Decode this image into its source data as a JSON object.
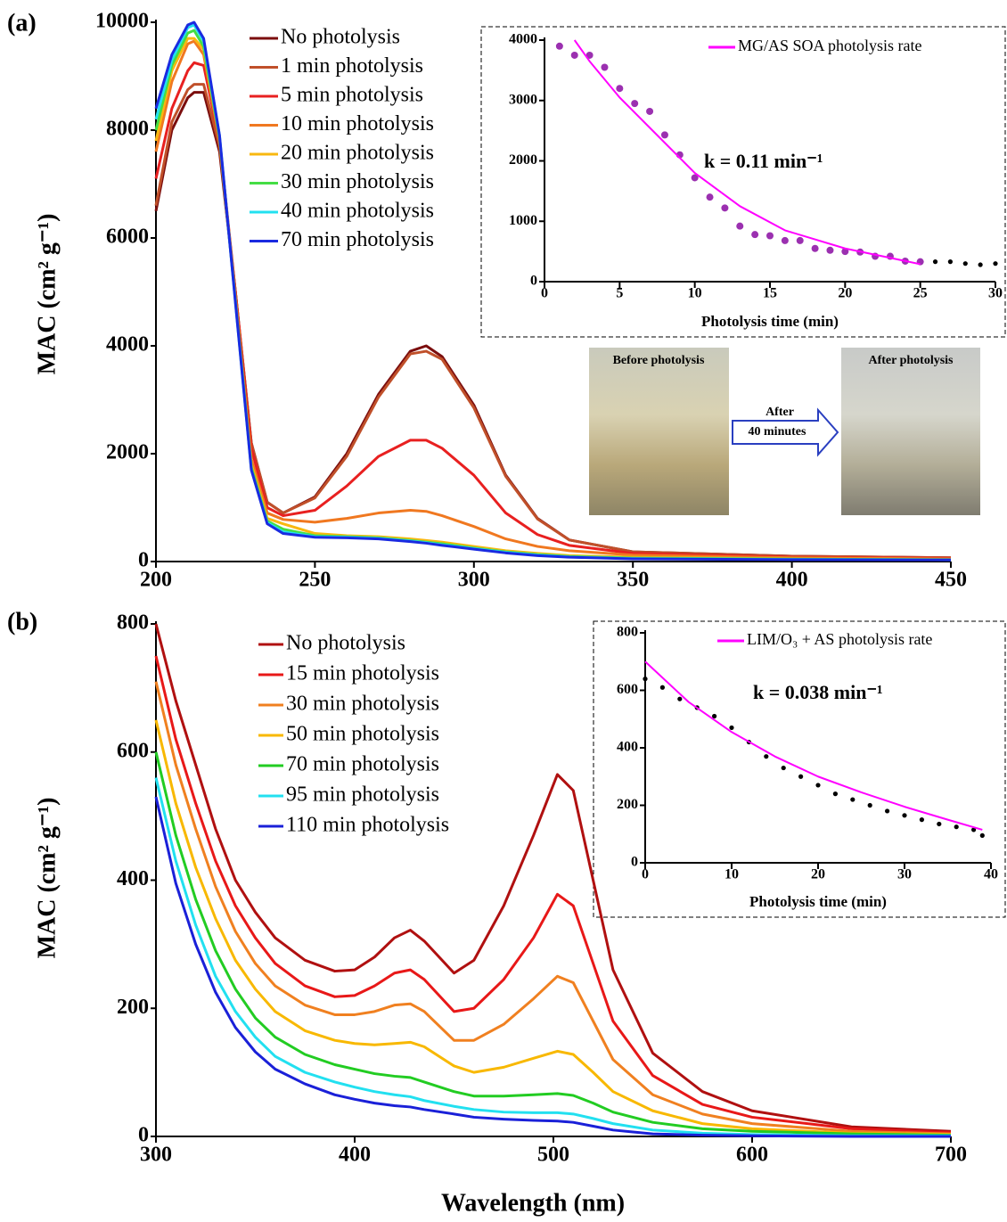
{
  "chart_data": [
    {
      "type": "line",
      "panel_label": "(a)",
      "ylabel": "MAC (cm² g⁻¹)",
      "xlim": [
        200,
        450
      ],
      "ylim": [
        0,
        10000
      ],
      "xticks": [
        200,
        250,
        300,
        350,
        400,
        450
      ],
      "yticks": [
        0,
        2000,
        4000,
        6000,
        8000,
        10000
      ],
      "annotations": [
        "Before photolysis",
        "After photolysis",
        "After",
        "40 minutes"
      ],
      "x": [
        200,
        205,
        210,
        212,
        215,
        220,
        225,
        230,
        235,
        240,
        250,
        260,
        270,
        280,
        285,
        290,
        300,
        310,
        320,
        330,
        350,
        400,
        450
      ],
      "series": [
        {
          "name": "No photolysis",
          "color": "#7b0e0e",
          "values": [
            6500,
            8000,
            8600,
            8700,
            8700,
            7600,
            5000,
            2200,
            1100,
            900,
            1200,
            2000,
            3100,
            3900,
            4000,
            3800,
            2900,
            1600,
            800,
            400,
            180,
            100,
            70
          ]
        },
        {
          "name": "1 min photolysis",
          "color": "#c0502a",
          "values": [
            6600,
            8150,
            8750,
            8850,
            8850,
            7700,
            5000,
            2200,
            1100,
            900,
            1180,
            1950,
            3050,
            3850,
            3900,
            3750,
            2850,
            1580,
            790,
            400,
            180,
            100,
            70
          ]
        },
        {
          "name": "5 min photolysis",
          "color": "#e82020",
          "values": [
            7100,
            8400,
            9100,
            9250,
            9200,
            7800,
            5000,
            2100,
            1000,
            850,
            950,
            1400,
            1950,
            2250,
            2250,
            2100,
            1600,
            900,
            500,
            300,
            150,
            80,
            60
          ]
        },
        {
          "name": "10 min photolysis",
          "color": "#f07820",
          "values": [
            7600,
            8900,
            9600,
            9650,
            9400,
            7800,
            4900,
            1900,
            900,
            780,
            730,
            800,
            900,
            950,
            930,
            850,
            650,
            420,
            280,
            200,
            120,
            70,
            50
          ]
        },
        {
          "name": "20 min photolysis",
          "color": "#f8b810",
          "values": [
            7800,
            9100,
            9700,
            9700,
            9500,
            7850,
            4850,
            1800,
            800,
            700,
            520,
            480,
            460,
            420,
            390,
            360,
            280,
            200,
            150,
            110,
            80,
            50,
            40
          ]
        },
        {
          "name": "30 min photolysis",
          "color": "#44dd44",
          "values": [
            8000,
            9200,
            9800,
            9850,
            9550,
            7850,
            4850,
            1750,
            750,
            600,
            480,
            460,
            440,
            390,
            360,
            330,
            250,
            180,
            130,
            95,
            65,
            45,
            35
          ]
        },
        {
          "name": "40 min photolysis",
          "color": "#22e0f0",
          "values": [
            8200,
            9300,
            9900,
            9950,
            9650,
            7900,
            4800,
            1700,
            720,
            550,
            460,
            450,
            430,
            380,
            350,
            310,
            240,
            170,
            120,
            85,
            55,
            40,
            32
          ]
        },
        {
          "name": "70 min photolysis",
          "color": "#1a2ae0",
          "values": [
            8400,
            9400,
            9950,
            10000,
            9700,
            7900,
            4800,
            1700,
            700,
            520,
            450,
            440,
            420,
            370,
            340,
            300,
            230,
            160,
            110,
            80,
            50,
            35,
            30
          ]
        }
      ]
    },
    {
      "type": "line",
      "panel_label": "(b)",
      "ylabel": "MAC (cm² g⁻¹)",
      "xlabel": "Wavelength (nm)",
      "xlim": [
        300,
        700
      ],
      "ylim": [
        0,
        800
      ],
      "xticks": [
        300,
        400,
        500,
        600,
        700
      ],
      "yticks": [
        0,
        200,
        400,
        600,
        800
      ],
      "x": [
        300,
        310,
        320,
        330,
        340,
        350,
        360,
        375,
        390,
        400,
        410,
        420,
        428,
        435,
        450,
        460,
        475,
        490,
        502,
        510,
        520,
        530,
        550,
        575,
        600,
        650,
        700
      ],
      "series": [
        {
          "name": "No photolysis",
          "color": "#b01010",
          "values": [
            800,
            680,
            580,
            480,
            400,
            350,
            310,
            275,
            258,
            260,
            280,
            310,
            322,
            305,
            255,
            275,
            360,
            470,
            565,
            540,
            400,
            260,
            130,
            70,
            40,
            15,
            8
          ]
        },
        {
          "name": "15 min photolysis",
          "color": "#e81818",
          "values": [
            750,
            620,
            520,
            430,
            360,
            310,
            270,
            235,
            218,
            220,
            235,
            255,
            260,
            245,
            195,
            200,
            245,
            310,
            378,
            360,
            270,
            180,
            95,
            50,
            30,
            12,
            6
          ]
        },
        {
          "name": "30 min photolysis",
          "color": "#f08020",
          "values": [
            710,
            580,
            480,
            390,
            320,
            270,
            235,
            205,
            190,
            190,
            195,
            205,
            207,
            195,
            150,
            150,
            175,
            215,
            250,
            240,
            180,
            120,
            65,
            35,
            20,
            8,
            4
          ]
        },
        {
          "name": "50 min photolysis",
          "color": "#f8b800",
          "values": [
            650,
            520,
            420,
            340,
            275,
            230,
            195,
            165,
            150,
            145,
            143,
            145,
            147,
            140,
            110,
            100,
            108,
            122,
            133,
            128,
            100,
            70,
            40,
            20,
            12,
            5,
            3
          ]
        },
        {
          "name": "70 min photolysis",
          "color": "#22cc22",
          "values": [
            600,
            470,
            370,
            290,
            230,
            185,
            155,
            128,
            112,
            105,
            98,
            94,
            92,
            85,
            70,
            63,
            63,
            65,
            67,
            64,
            52,
            38,
            22,
            12,
            8,
            4,
            2
          ]
        },
        {
          "name": "95 min photolysis",
          "color": "#22e0f0",
          "values": [
            560,
            430,
            330,
            250,
            195,
            155,
            125,
            100,
            85,
            77,
            70,
            65,
            62,
            56,
            47,
            42,
            38,
            37,
            37,
            35,
            28,
            20,
            10,
            5,
            3,
            1,
            1
          ]
        },
        {
          "name": "110 min photolysis",
          "color": "#1a20d8",
          "values": [
            530,
            395,
            300,
            225,
            170,
            132,
            105,
            82,
            65,
            58,
            52,
            48,
            46,
            42,
            35,
            30,
            27,
            25,
            24,
            22,
            16,
            10,
            4,
            2,
            1,
            0,
            0
          ]
        }
      ]
    },
    {
      "type": "scatter",
      "xlabel": "Photolysis time (min)",
      "annotation": "k = 0.11 min⁻¹",
      "xlim": [
        0,
        30
      ],
      "ylim": [
        0,
        4000
      ],
      "xticks": [
        0,
        5,
        10,
        15,
        20,
        25,
        30
      ],
      "yticks": [
        0,
        1000,
        2000,
        3000,
        4000
      ],
      "series": [
        {
          "style": "marker",
          "color": "#9b30b0",
          "x": [
            1,
            2,
            3,
            4,
            5,
            6,
            7,
            8,
            9,
            10,
            11,
            12,
            13,
            14,
            15,
            16,
            17,
            18,
            19,
            20,
            21,
            22,
            23,
            24,
            25
          ],
          "values": [
            3900,
            3750,
            3750,
            3550,
            3200,
            2950,
            2820,
            2430,
            2100,
            1720,
            1400,
            1220,
            920,
            780,
            760,
            680,
            680,
            550,
            520,
            500,
            490,
            420,
            420,
            340,
            330
          ]
        },
        {
          "style": "dots",
          "color": "#000000",
          "x": [
            26,
            27,
            28,
            29,
            30
          ],
          "values": [
            330,
            330,
            300,
            280,
            300
          ]
        },
        {
          "name": "MG/AS SOA photolysis rate",
          "style": "line",
          "color": "#ff00ff",
          "x": [
            2,
            3,
            5,
            7,
            10,
            13,
            16,
            20,
            25
          ],
          "values": [
            4000,
            3650,
            3050,
            2550,
            1800,
            1250,
            850,
            550,
            290
          ]
        }
      ]
    },
    {
      "type": "scatter",
      "xlabel": "Photolysis time (min)",
      "annotation": "k = 0.038 min⁻¹",
      "xlim": [
        0,
        40
      ],
      "ylim": [
        0,
        800
      ],
      "xticks": [
        0,
        10,
        20,
        30,
        40
      ],
      "yticks": [
        0,
        200,
        400,
        600,
        800
      ],
      "series": [
        {
          "style": "dots",
          "color": "#000000",
          "x": [
            0,
            2,
            4,
            6,
            8,
            10,
            12,
            14,
            16,
            18,
            20,
            22,
            24,
            26,
            28,
            30,
            32,
            34,
            36,
            38,
            39
          ],
          "values": [
            640,
            610,
            570,
            540,
            510,
            470,
            420,
            370,
            330,
            300,
            270,
            240,
            220,
            200,
            180,
            165,
            150,
            135,
            125,
            115,
            95
          ]
        },
        {
          "name": "LIM/O₃ + AS photolysis rate",
          "style": "line",
          "color": "#ff00ff",
          "x": [
            0,
            5,
            10,
            15,
            20,
            25,
            30,
            35,
            39
          ],
          "values": [
            700,
            560,
            455,
            370,
            300,
            245,
            195,
            150,
            115
          ]
        }
      ]
    }
  ]
}
